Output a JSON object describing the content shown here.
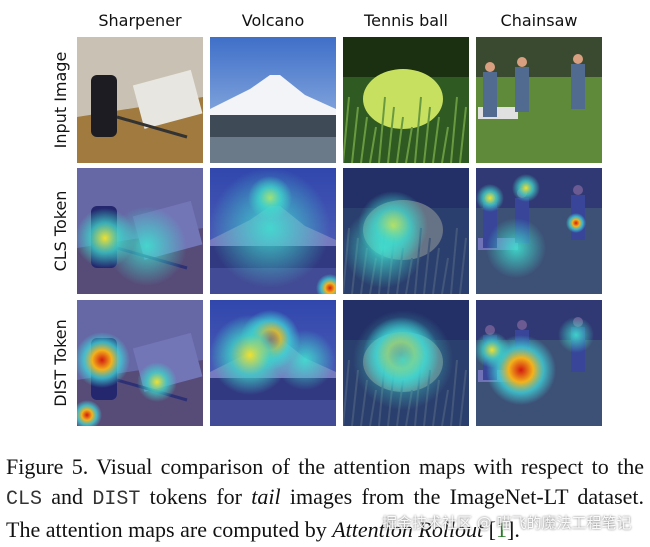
{
  "columns": [
    "Sharpener",
    "Volcano",
    "Tennis ball",
    "Chainsaw"
  ],
  "rows": [
    "Input Image",
    "CLS Token",
    "DIST Token"
  ],
  "caption": {
    "label": "Figure 5.",
    "parts": [
      " Visual comparison of the attention maps with respect to the ",
      "CLS",
      " and ",
      "DIST",
      " tokens for ",
      "tail",
      " images from the ImageNet-LT dataset. The attention maps are computed by ",
      "Attention Rollout",
      " [",
      "1",
      "]."
    ]
  },
  "watermark": "掘金技术社区 @ 喵飞的魔法工程笔记"
}
